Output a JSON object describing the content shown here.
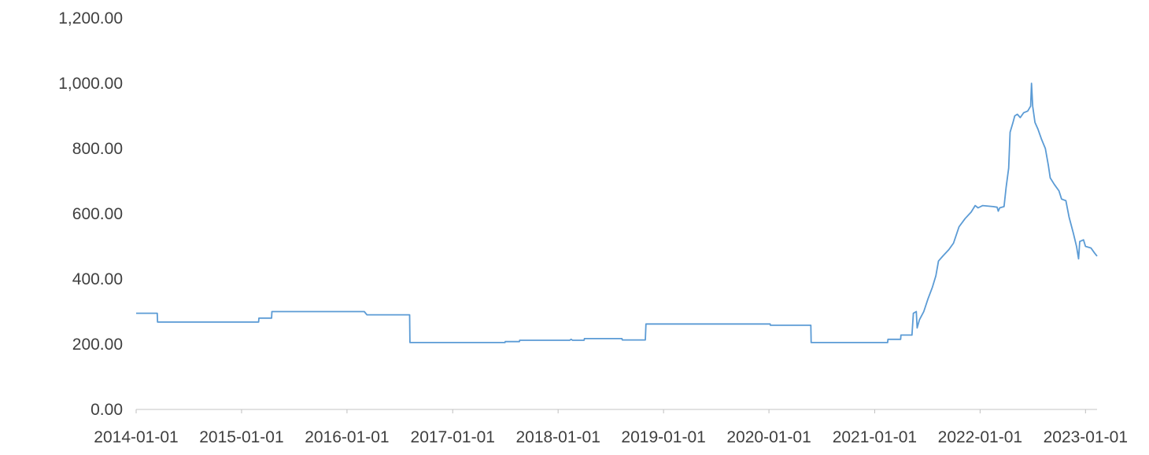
{
  "chart_data": {
    "type": "line",
    "title": "",
    "xlabel": "",
    "ylabel": "",
    "ylim": [
      0,
      1200
    ],
    "xlim": [
      "2014-01-01",
      "2023-02-10"
    ],
    "y_ticks": [
      "0.00",
      "200.00",
      "400.00",
      "600.00",
      "800.00",
      "1,000.00",
      "1,200.00"
    ],
    "y_tick_values": [
      0,
      200,
      400,
      600,
      800,
      1000,
      1200
    ],
    "x_ticks": [
      "2014-01-01",
      "2015-01-01",
      "2016-01-01",
      "2017-01-01",
      "2018-01-01",
      "2019-01-01",
      "2020-01-01",
      "2021-01-01",
      "2022-01-01",
      "2023-01-01"
    ],
    "grid": false,
    "legend": "none",
    "color": "#5b9bd5",
    "series": [
      {
        "values": [
          [
            "2014-01-01",
            295
          ],
          [
            "2014-03-15",
            295
          ],
          [
            "2014-03-16",
            268
          ],
          [
            "2015-03-01",
            268
          ],
          [
            "2015-03-02",
            280
          ],
          [
            "2015-04-15",
            280
          ],
          [
            "2015-04-16",
            300
          ],
          [
            "2016-03-01",
            300
          ],
          [
            "2016-03-10",
            290
          ],
          [
            "2016-08-05",
            290
          ],
          [
            "2016-08-06",
            205
          ],
          [
            "2017-07-01",
            205
          ],
          [
            "2017-07-02",
            208
          ],
          [
            "2017-08-20",
            208
          ],
          [
            "2017-08-21",
            212
          ],
          [
            "2018-02-10",
            212
          ],
          [
            "2018-02-15",
            215
          ],
          [
            "2018-02-20",
            212
          ],
          [
            "2018-04-01",
            212
          ],
          [
            "2018-04-02",
            217
          ],
          [
            "2018-08-10",
            217
          ],
          [
            "2018-08-11",
            213
          ],
          [
            "2018-10-30",
            213
          ],
          [
            "2018-11-01",
            262
          ],
          [
            "2020-01-05",
            262
          ],
          [
            "2020-01-06",
            258
          ],
          [
            "2020-05-25",
            258
          ],
          [
            "2020-05-26",
            205
          ],
          [
            "2021-02-15",
            205
          ],
          [
            "2021-02-16",
            215
          ],
          [
            "2021-04-01",
            215
          ],
          [
            "2021-04-02",
            228
          ],
          [
            "2021-05-10",
            228
          ],
          [
            "2021-05-15",
            295
          ],
          [
            "2021-05-25",
            300
          ],
          [
            "2021-05-28",
            250
          ],
          [
            "2021-06-05",
            275
          ],
          [
            "2021-06-20",
            300
          ],
          [
            "2021-07-05",
            340
          ],
          [
            "2021-07-20",
            375
          ],
          [
            "2021-08-01",
            410
          ],
          [
            "2021-08-10",
            455
          ],
          [
            "2021-08-25",
            470
          ],
          [
            "2021-09-15",
            490
          ],
          [
            "2021-10-01",
            510
          ],
          [
            "2021-10-20",
            560
          ],
          [
            "2021-11-10",
            585
          ],
          [
            "2021-12-01",
            605
          ],
          [
            "2021-12-15",
            625
          ],
          [
            "2021-12-25",
            618
          ],
          [
            "2022-01-10",
            625
          ],
          [
            "2022-02-15",
            622
          ],
          [
            "2022-03-01",
            620
          ],
          [
            "2022-03-05",
            608
          ],
          [
            "2022-03-10",
            618
          ],
          [
            "2022-03-25",
            622
          ],
          [
            "2022-04-01",
            680
          ],
          [
            "2022-04-10",
            740
          ],
          [
            "2022-04-15",
            850
          ],
          [
            "2022-04-25",
            880
          ],
          [
            "2022-05-01",
            900
          ],
          [
            "2022-05-10",
            905
          ],
          [
            "2022-05-20",
            895
          ],
          [
            "2022-06-01",
            910
          ],
          [
            "2022-06-15",
            915
          ],
          [
            "2022-06-25",
            930
          ],
          [
            "2022-06-28",
            1000
          ],
          [
            "2022-07-02",
            930
          ],
          [
            "2022-07-10",
            880
          ],
          [
            "2022-07-20",
            860
          ],
          [
            "2022-08-01",
            830
          ],
          [
            "2022-08-15",
            800
          ],
          [
            "2022-08-25",
            750
          ],
          [
            "2022-09-01",
            710
          ],
          [
            "2022-09-15",
            690
          ],
          [
            "2022-10-01",
            670
          ],
          [
            "2022-10-10",
            645
          ],
          [
            "2022-10-25",
            640
          ],
          [
            "2022-11-05",
            590
          ],
          [
            "2022-11-20",
            540
          ],
          [
            "2022-12-01",
            500
          ],
          [
            "2022-12-08",
            462
          ],
          [
            "2022-12-12",
            515
          ],
          [
            "2022-12-25",
            520
          ],
          [
            "2023-01-01",
            500
          ],
          [
            "2023-01-20",
            495
          ],
          [
            "2023-02-01",
            480
          ],
          [
            "2023-02-10",
            470
          ]
        ]
      }
    ]
  }
}
